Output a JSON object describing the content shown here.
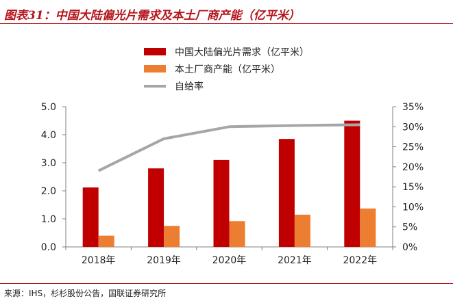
{
  "figure_title": "图表31：中国大陆偏光片需求及本土厂商产能（亿平米）",
  "source": "来源：IHS，杉杉股份公告，国联证券研究所",
  "colors": {
    "demand": "#c00000",
    "capacity": "#ed7d31",
    "ratio": "#a6a6a6",
    "accent": "#b5141b"
  },
  "chart_data": {
    "type": "bar",
    "categories": [
      "2018年",
      "2019年",
      "2020年",
      "2021年",
      "2022年"
    ],
    "series": [
      {
        "name": "中国大陆偏光片需求（亿平米）",
        "type": "bar",
        "axis": "left",
        "values": [
          2.12,
          2.8,
          3.1,
          3.85,
          4.5
        ]
      },
      {
        "name": "本土厂商产能（亿平米）",
        "type": "bar",
        "axis": "left",
        "values": [
          0.4,
          0.75,
          0.92,
          1.15,
          1.37
        ]
      },
      {
        "name": "自给率",
        "type": "line",
        "axis": "right",
        "values": [
          19,
          27,
          30,
          30.3,
          30.5
        ]
      }
    ],
    "y_left": {
      "min": 0,
      "max": 5,
      "ticks": [
        "0.0",
        "1.0",
        "2.0",
        "3.0",
        "4.0",
        "5.0"
      ]
    },
    "y_right": {
      "min": 0,
      "max": 35,
      "ticks": [
        "0%",
        "5%",
        "10%",
        "15%",
        "20%",
        "25%",
        "30%",
        "35%"
      ]
    },
    "legend_position": "top-center",
    "grid": false
  }
}
